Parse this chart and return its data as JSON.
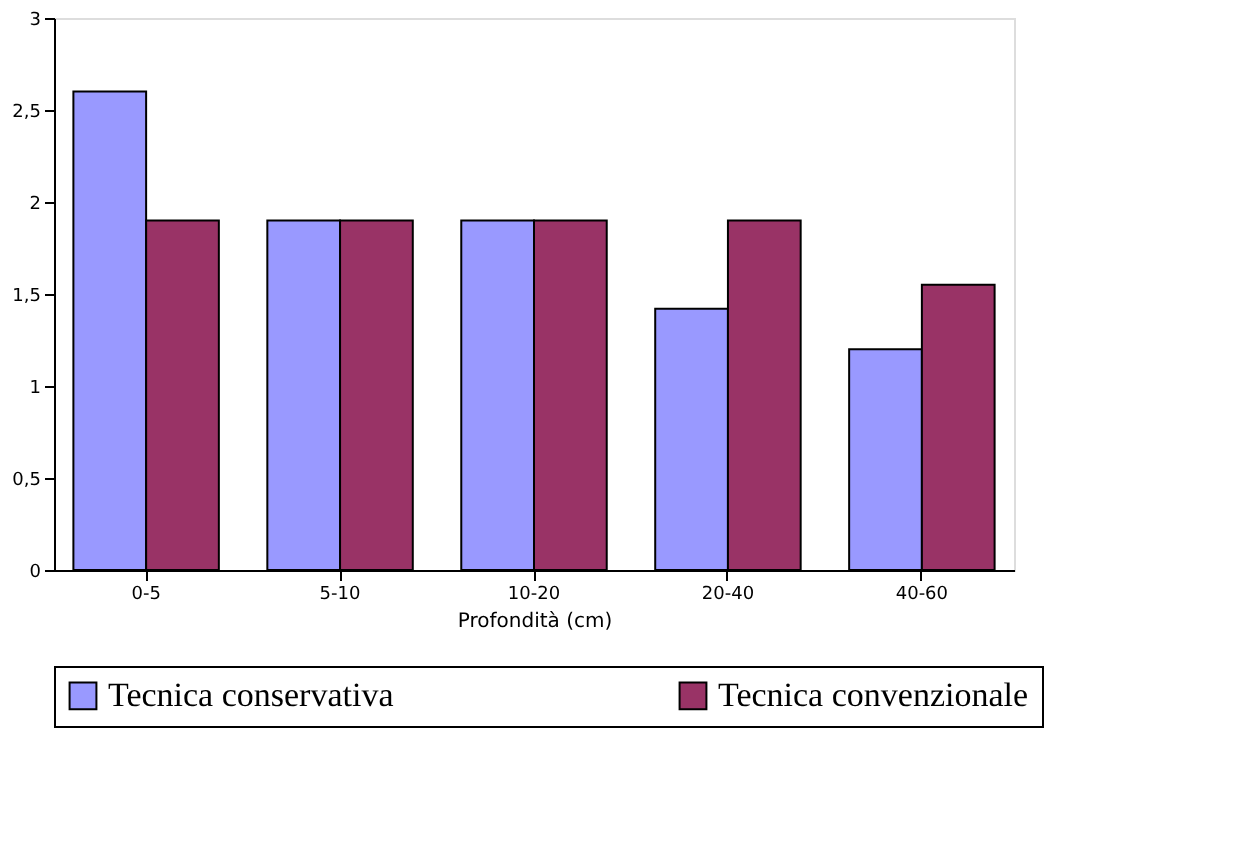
{
  "chart_data": {
    "type": "bar",
    "xlabel": "Profondità (cm)",
    "categories": [
      "0-5",
      "5-10",
      "10-20",
      "20-40",
      "40-60"
    ],
    "series": [
      {
        "name": "Tecnica conservativa",
        "color": "#9999ff",
        "values": [
          2.6,
          1.9,
          1.9,
          1.42,
          1.2
        ]
      },
      {
        "name": "Tecnica convenzionale",
        "color": "#993366",
        "values": [
          1.9,
          1.9,
          1.9,
          1.9,
          1.55
        ]
      }
    ],
    "ylim": [
      0,
      3
    ],
    "yticks": [
      0,
      {
        "value": 0.5,
        "label": "0,5"
      },
      1,
      {
        "value": 1.5,
        "label": "1,5"
      },
      2,
      {
        "value": 2.5,
        "label": "2,5"
      },
      3
    ],
    "grid": false,
    "legend": "bottom"
  }
}
